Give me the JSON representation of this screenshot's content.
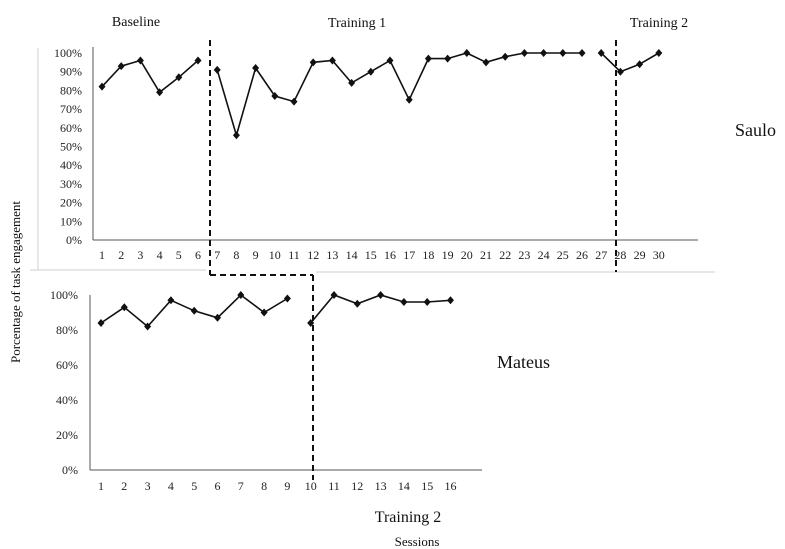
{
  "chart_data": [
    {
      "type": "line",
      "participant": "Saulo",
      "y_ticks": [
        "0%",
        "10%",
        "20%",
        "30%",
        "40%",
        "50%",
        "60%",
        "70%",
        "80%",
        "90%",
        "100%"
      ],
      "ylim": [
        0,
        100
      ],
      "phases": [
        {
          "label": "Baseline",
          "x": [
            1,
            2,
            3,
            4,
            5,
            6
          ],
          "y": [
            82,
            93,
            96,
            79,
            87,
            96
          ]
        },
        {
          "label": "Training 1",
          "x": [
            7,
            8,
            9,
            10,
            11,
            12,
            13,
            14,
            15,
            16,
            17,
            18,
            19,
            20,
            21,
            22,
            23,
            24,
            25,
            26
          ],
          "y": [
            91,
            56,
            92,
            77,
            74,
            95,
            96,
            84,
            90,
            96,
            75,
            97,
            97,
            100,
            95,
            98,
            100,
            100,
            100,
            100
          ]
        },
        {
          "label": "Training 2",
          "x": [
            27,
            28,
            29,
            30
          ],
          "y": [
            100,
            90,
            94,
            100
          ]
        }
      ]
    },
    {
      "type": "line",
      "participant": "Mateus",
      "y_ticks": [
        "0%",
        "20%",
        "40%",
        "60%",
        "80%",
        "100%"
      ],
      "ylim": [
        0,
        100
      ],
      "phases": [
        {
          "label": "",
          "x": [
            1,
            2,
            3,
            4,
            5,
            6,
            7,
            8,
            9
          ],
          "y": [
            84,
            93,
            82,
            97,
            91,
            87,
            100,
            90,
            98
          ]
        },
        {
          "label": "Training 2",
          "x": [
            10,
            11,
            12,
            13,
            14,
            15,
            16
          ],
          "y": [
            84,
            100,
            95,
            100,
            96,
            96,
            97
          ]
        }
      ]
    }
  ],
  "ylabel": "Porcentage of task engagement",
  "xlabel": "Sessions"
}
